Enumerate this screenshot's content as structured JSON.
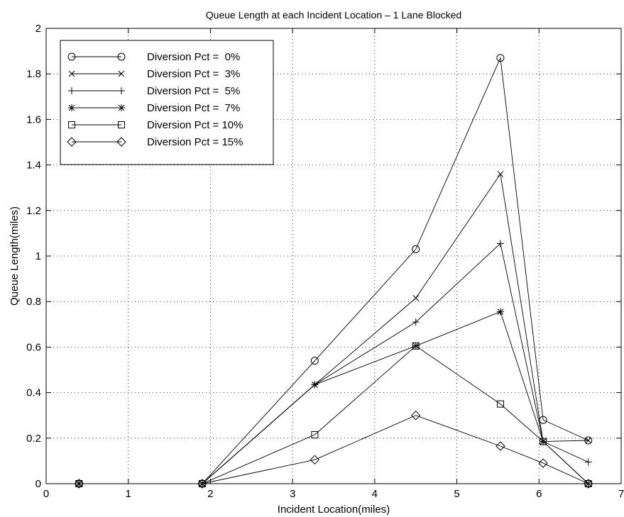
{
  "chart_data": {
    "type": "line",
    "title": "Queue Length at each Incident Location – 1 Lane Blocked",
    "xlabel": "Incident Location(miles)",
    "ylabel": "Queue Length(miles)",
    "xlim": [
      0,
      7
    ],
    "ylim": [
      0,
      2
    ],
    "xticks": [
      "0",
      "1",
      "2",
      "3",
      "4",
      "5",
      "6",
      "7"
    ],
    "yticks": [
      "0",
      "0.2",
      "0.4",
      "0.6",
      "0.8",
      "1",
      "1.2",
      "1.4",
      "1.6",
      "1.8",
      "2"
    ],
    "grid": true,
    "legend_position": "top-left",
    "x": [
      0.4,
      1.9,
      3.27,
      4.5,
      5.53,
      6.05,
      6.6
    ],
    "series": [
      {
        "name": "Diversion Pct =  0%",
        "marker": "circle",
        "values": [
          0,
          0,
          0.54,
          1.03,
          1.87,
          0.28,
          0.19
        ]
      },
      {
        "name": "Diversion Pct =  3%",
        "marker": "x",
        "values": [
          0,
          0,
          0.435,
          0.815,
          1.36,
          0.185,
          0.19
        ]
      },
      {
        "name": "Diversion Pct =  5%",
        "marker": "plus",
        "values": [
          0,
          0,
          0.435,
          0.71,
          1.055,
          0.185,
          0.095
        ]
      },
      {
        "name": "Diversion Pct =  7%",
        "marker": "star",
        "values": [
          0,
          0,
          0.435,
          0.605,
          0.755,
          0.185,
          0
        ]
      },
      {
        "name": "Diversion Pct = 10%",
        "marker": "square",
        "values": [
          0,
          0,
          0.215,
          0.605,
          0.35,
          0.185,
          0
        ]
      },
      {
        "name": "Diversion Pct = 15%",
        "marker": "diamond",
        "values": [
          0,
          0,
          0.105,
          0.3,
          0.165,
          0.09,
          0
        ]
      }
    ]
  }
}
